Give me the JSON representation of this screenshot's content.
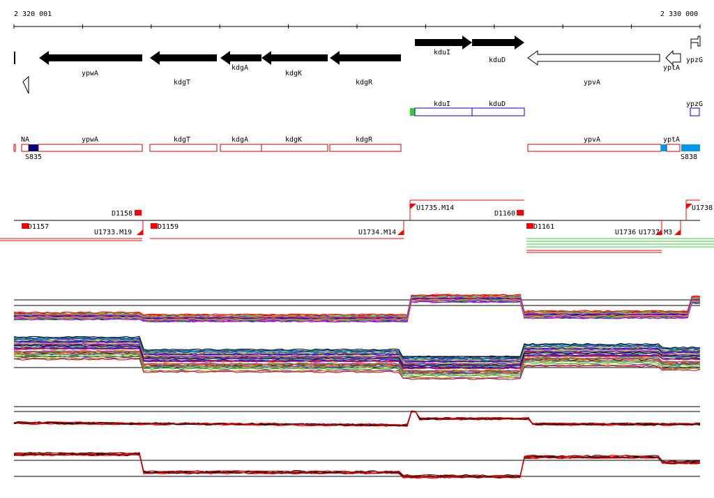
{
  "axis": {
    "start_label": "2 320 001",
    "end_label": "2 330 000",
    "start": 2320001,
    "end": 2330000
  },
  "genes_track": [
    {
      "label": "ypwA",
      "strand": "-"
    },
    {
      "label": "kdgT",
      "strand": "-"
    },
    {
      "label": "kdgA",
      "strand": "-"
    },
    {
      "label": "kdgK",
      "strand": "-"
    },
    {
      "label": "kdgR",
      "strand": "-"
    },
    {
      "label": "kduI",
      "strand": "+"
    },
    {
      "label": "kduD",
      "strand": "+"
    },
    {
      "label": "ypvA",
      "strand": "-"
    },
    {
      "label": "yptA",
      "strand": "-"
    },
    {
      "label": "ypzG",
      "strand": "+"
    }
  ],
  "operon_plus": [
    {
      "label": "kduI"
    },
    {
      "label": "kduD"
    },
    {
      "label": "ypzG"
    }
  ],
  "operon_minus": [
    {
      "label": "NA"
    },
    {
      "label": "ypwA"
    },
    {
      "label": "kdgT"
    },
    {
      "label": "kdgA"
    },
    {
      "label": "kdgK"
    },
    {
      "label": "kdgR"
    },
    {
      "label": "ypvA"
    },
    {
      "label": "yptA"
    }
  ],
  "sigma_labels": {
    "left": "S835",
    "right": "S838"
  },
  "features": {
    "D1157": "D1157",
    "D1158": "D1158",
    "D1159": "D1159",
    "D1160": "D1160",
    "D1161": "D1161",
    "U1733M19": "U1733.M19",
    "U1734M14": "U1734.M14",
    "U1735M14": "U1735.M14",
    "U1736": "U1736",
    "U1737M3": "U1737.M3",
    "U1738": "U1738"
  },
  "colors": {
    "gene_forward": "#000000",
    "gene_reverse_outline": "#000000",
    "operon_plus": "#0000cc",
    "operon_minus": "#cc0000",
    "terminator": "#ff0000",
    "sigma_dark": "#000080",
    "sigma_light": "#0099ee",
    "promoter_green": "#33cc33"
  }
}
